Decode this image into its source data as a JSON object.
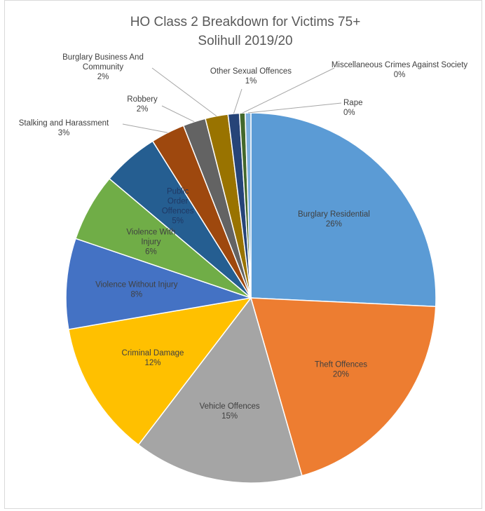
{
  "chart_data": {
    "type": "pie",
    "title": "HO Class 2 Breakdown for Victims 75+",
    "subtitle": "Solihull 2019/20",
    "slices": [
      {
        "name": "Burglary Residential",
        "value": 26,
        "pct_label": "26%",
        "color": "#5b9bd5",
        "label_inside": true
      },
      {
        "name": "Theft Offences",
        "value": 20,
        "pct_label": "20%",
        "color": "#ed7d31",
        "label_inside": true
      },
      {
        "name": "Vehicle Offences",
        "value": 15,
        "pct_label": "15%",
        "color": "#a5a5a5",
        "label_inside": true
      },
      {
        "name": "Criminal Damage",
        "value": 12,
        "pct_label": "12%",
        "color": "#ffc000",
        "label_inside": true
      },
      {
        "name": "Violence Without Injury",
        "value": 8,
        "pct_label": "8%",
        "color": "#4472c4",
        "label_inside": true
      },
      {
        "name": "Violence With Injury",
        "value": 6,
        "pct_label": "6%",
        "color": "#70ad47",
        "label_inside": true
      },
      {
        "name": "Public Order Offences",
        "value": 5,
        "pct_label": "5%",
        "color": "#255e91",
        "label_inside": true
      },
      {
        "name": "Stalking and Harassment",
        "value": 3,
        "pct_label": "3%",
        "color": "#9e480e",
        "label_inside": false
      },
      {
        "name": "Robbery",
        "value": 2,
        "pct_label": "2%",
        "color": "#636363",
        "label_inside": false
      },
      {
        "name": "Burglary Business And Community",
        "value": 2,
        "pct_label": "2%",
        "color": "#997300",
        "label_inside": false
      },
      {
        "name": "Other Sexual Offences",
        "value": 1,
        "pct_label": "1%",
        "color": "#264478",
        "label_inside": false
      },
      {
        "name": "Miscellaneous Crimes Against Society",
        "value": 0.5,
        "pct_label": "0%",
        "color": "#43682b",
        "label_inside": false
      },
      {
        "name": "Rape",
        "value": 0.5,
        "pct_label": "0%",
        "color": "#7cafdd",
        "label_inside": false
      }
    ]
  }
}
